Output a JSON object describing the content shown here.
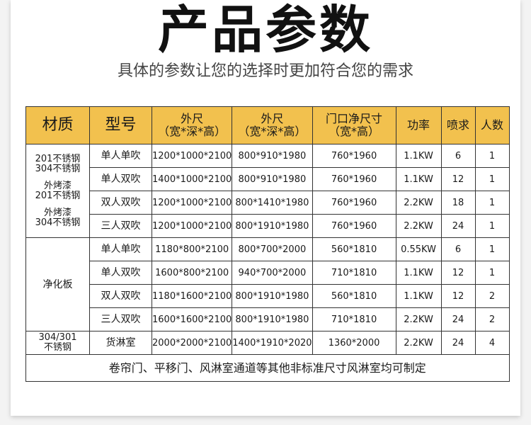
{
  "title": "产品参数",
  "subtitle": "具体的参数让您的选择时更加符合您的需求",
  "header_color": "#f2c14e",
  "table": {
    "header_lines": [
      [
        "材质"
      ],
      [
        "型号"
      ],
      [
        "外尺",
        "（宽*深*高）"
      ],
      [
        "外尺",
        "（宽*深*高）"
      ],
      [
        "门口净尺寸",
        "（宽*高）"
      ],
      [
        "功率"
      ],
      [
        "喷求"
      ],
      [
        "人数"
      ]
    ],
    "groups": [
      {
        "material_lines": [
          "201不锈钢",
          "304不锈钢",
          "外烤漆",
          "201不锈钢",
          "外烤漆",
          "304不锈钢"
        ],
        "rows": [
          [
            "单人单吹",
            "1200*1000*2100",
            "800*910*1980",
            "760*1960",
            "1.1KW",
            "6",
            "1"
          ],
          [
            "单人双吹",
            "1400*1000*2100",
            "800*910*1980",
            "760*1960",
            "1.1KW",
            "12",
            "1"
          ],
          [
            "双人双吹",
            "1200*1000*2100",
            "800*1410*1980",
            "760*1960",
            "2.2KW",
            "18",
            "1"
          ],
          [
            "三人双吹",
            "1200*1000*2100",
            "800*1910*1980",
            "760*1960",
            "2.2KW",
            "24",
            "1"
          ]
        ]
      },
      {
        "material_lines": [
          "净化板"
        ],
        "rows": [
          [
            "单人单吹",
            "1180*800*2100",
            "800*700*2000",
            "560*1810",
            "0.55KW",
            "6",
            "1"
          ],
          [
            "单人双吹",
            "1600*800*2100",
            "940*700*2000",
            "710*1810",
            "1.1KW",
            "12",
            "1"
          ],
          [
            "双人双吹",
            "1180*1600*2100",
            "800*1910*1980",
            "560*1810",
            "1.1KW",
            "12",
            "2"
          ],
          [
            "三人双吹",
            "1600*1600*2100",
            "800*1910*1980",
            "710*1810",
            "2.2KW",
            "24",
            "2"
          ]
        ]
      },
      {
        "material_lines": [
          "304/301",
          "不锈钢"
        ],
        "rows": [
          [
            "货淋室",
            "2000*2000*2100",
            "1400*1910*2020",
            "1360*2000",
            "2.2KW",
            "24",
            "4"
          ]
        ]
      }
    ],
    "footer": "卷帘门、平移门、风淋室通道等其他非标准尺寸风淋室均可制定"
  }
}
